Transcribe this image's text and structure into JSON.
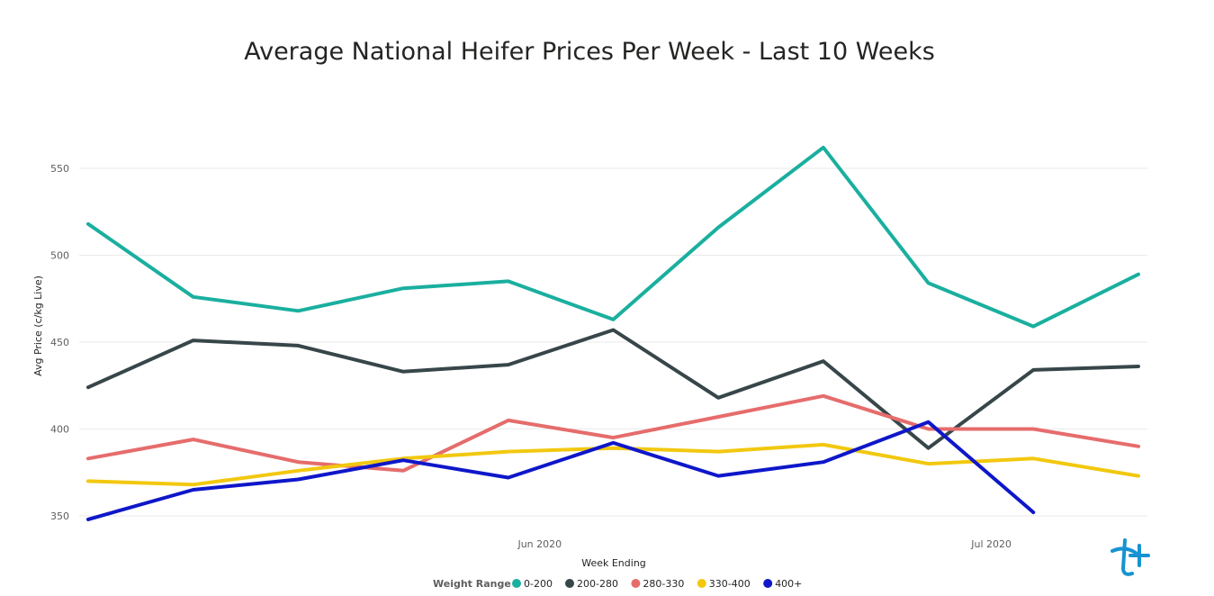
{
  "chart_data": {
    "type": "line",
    "title": "Average National Heifer Prices Per Week - Last 10 Weeks",
    "xlabel": "Week Ending",
    "ylabel": "Avg Price (c/kg Live)",
    "ylim": [
      345,
      570
    ],
    "yticks": [
      350,
      400,
      450,
      500,
      550
    ],
    "x_tick_labels": [
      {
        "label": "Jun 2020",
        "at": 4.3
      },
      {
        "label": "Jul 2020",
        "at": 8.6
      }
    ],
    "grid": true,
    "legend": {
      "title": "Weight Range",
      "placement": "bottom-center"
    },
    "series": [
      {
        "name": "0-200",
        "color": "#1aaf9f",
        "values": [
          518,
          476,
          468,
          481,
          485,
          463,
          516,
          562,
          484,
          459,
          489
        ]
      },
      {
        "name": "200-280",
        "color": "#374649",
        "values": [
          424,
          451,
          448,
          433,
          437,
          457,
          418,
          439,
          389,
          434,
          436
        ]
      },
      {
        "name": "280-330",
        "color": "#e66c6c",
        "values": [
          383,
          394,
          381,
          376,
          405,
          395,
          407,
          419,
          400,
          400,
          390
        ]
      },
      {
        "name": "330-400",
        "color": "#f2c80f",
        "values": [
          370,
          368,
          376,
          383,
          387,
          389,
          387,
          391,
          380,
          383,
          373
        ]
      },
      {
        "name": "400+",
        "color": "#0e17c9",
        "values": [
          348,
          365,
          371,
          382,
          372,
          392,
          373,
          381,
          404,
          352,
          null
        ]
      }
    ]
  },
  "logo": {
    "name": "tt-logo",
    "color": "#1793d1"
  }
}
